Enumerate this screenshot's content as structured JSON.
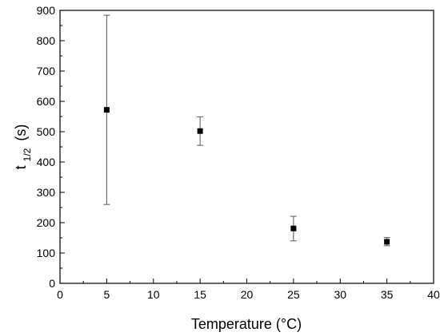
{
  "chart_data": {
    "type": "scatter",
    "xlabel": "Temperature (°C)",
    "ylabel_main": "t",
    "ylabel_sub": "1/2",
    "ylabel_unit": "(s)",
    "xlim": [
      0,
      40
    ],
    "ylim": [
      0,
      900
    ],
    "x_ticks": [
      0,
      5,
      10,
      15,
      20,
      25,
      30,
      35,
      40
    ],
    "y_ticks": [
      0,
      100,
      200,
      300,
      400,
      500,
      600,
      700,
      800,
      900
    ],
    "grid": false,
    "marker": "square",
    "color": "#000000",
    "points": [
      {
        "x": 5,
        "y": 572,
        "y_low": 260,
        "y_high": 884
      },
      {
        "x": 15,
        "y": 502,
        "y_low": 455,
        "y_high": 549
      },
      {
        "x": 25,
        "y": 181,
        "y_low": 140,
        "y_high": 221
      },
      {
        "x": 35,
        "y": 137,
        "y_low": 124,
        "y_high": 151
      }
    ]
  }
}
